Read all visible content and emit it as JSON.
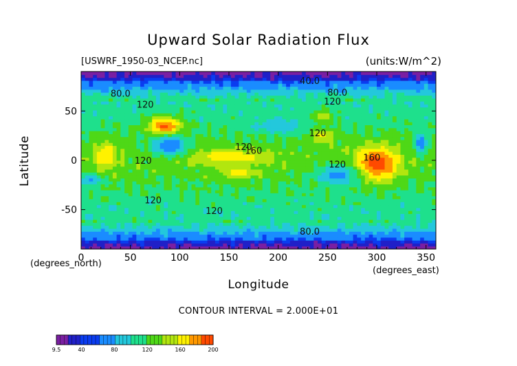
{
  "chart_data": {
    "type": "heatmap",
    "title": "Upward Solar Radiation Flux",
    "subtitle_left": "[USWRF_1950-03_NCEP.nc]",
    "subtitle_right": "(units:W/m^2)",
    "xlabel": "Longitude",
    "ylabel": "Latitude",
    "x_unit_label": "(degrees_east)",
    "y_unit_label": "(degrees_north)",
    "xlim": [
      0,
      360
    ],
    "ylim": [
      -90,
      90
    ],
    "x_ticks": [
      0,
      50,
      100,
      150,
      200,
      250,
      300,
      350
    ],
    "y_ticks": [
      50,
      0,
      -50
    ],
    "contour_interval_text": "CONTOUR INTERVAL = 2.000E+01",
    "contour_labels": [
      {
        "text": "40.0",
        "lon": 232,
        "lat": 81
      },
      {
        "text": "80.0",
        "lon": 40,
        "lat": 68
      },
      {
        "text": "80.0",
        "lon": 260,
        "lat": 69
      },
      {
        "text": "120",
        "lon": 65,
        "lat": 57
      },
      {
        "text": "120",
        "lon": 255,
        "lat": 60
      },
      {
        "text": "120",
        "lon": 240,
        "lat": 28
      },
      {
        "text": "120",
        "lon": 165,
        "lat": 14
      },
      {
        "text": "160",
        "lon": 175,
        "lat": 10
      },
      {
        "text": "120",
        "lon": 63,
        "lat": 0
      },
      {
        "text": "120",
        "lon": 260,
        "lat": -4
      },
      {
        "text": "160",
        "lon": 295,
        "lat": 3
      },
      {
        "text": "120",
        "lon": 73,
        "lat": -40
      },
      {
        "text": "120",
        "lon": 135,
        "lat": -51
      },
      {
        "text": "80.0",
        "lon": 232,
        "lat": -72
      }
    ],
    "field_features": [
      {
        "lon": 85,
        "lat": 35,
        "value": 190,
        "w": 18,
        "h": 10
      },
      {
        "lon": 25,
        "lat": 5,
        "value": 170,
        "w": 12,
        "h": 14
      },
      {
        "lon": 150,
        "lat": 4,
        "value": 165,
        "w": 45,
        "h": 8
      },
      {
        "lon": 160,
        "lat": -12,
        "value": 160,
        "w": 20,
        "h": 7
      },
      {
        "lon": 300,
        "lat": -3,
        "value": 195,
        "w": 22,
        "h": 18
      },
      {
        "lon": 245,
        "lat": 25,
        "value": 160,
        "w": 14,
        "h": 8
      },
      {
        "lon": 245,
        "lat": 45,
        "value": 150,
        "w": 12,
        "h": 7
      },
      {
        "lon": 90,
        "lat": 15,
        "value": 60,
        "w": 18,
        "h": 10
      },
      {
        "lon": 260,
        "lat": -15,
        "value": 70,
        "w": 20,
        "h": 10
      },
      {
        "lon": 345,
        "lat": 18,
        "value": 60,
        "w": 6,
        "h": 10
      },
      {
        "lon": 10,
        "lat": -20,
        "value": 75,
        "w": 10,
        "h": 6
      },
      {
        "lon": 200,
        "lat": 35,
        "value": 90,
        "w": 30,
        "h": 8
      }
    ],
    "colorbar": {
      "tick_labels": [
        "9.5",
        "40",
        "80",
        "120",
        "160",
        "200"
      ],
      "tick_values": [
        9.5,
        40,
        80,
        120,
        160,
        200
      ],
      "range": [
        9.5,
        200
      ],
      "stops": [
        {
          "v": 9.5,
          "c": "#7a1fa2"
        },
        {
          "v": 25,
          "c": "#2020c8"
        },
        {
          "v": 40,
          "c": "#0a3cf0"
        },
        {
          "v": 60,
          "c": "#1a8cff"
        },
        {
          "v": 80,
          "c": "#23c8dc"
        },
        {
          "v": 100,
          "c": "#1ee08c"
        },
        {
          "v": 120,
          "c": "#4ed817"
        },
        {
          "v": 140,
          "c": "#b2e60f"
        },
        {
          "v": 155,
          "c": "#fff200"
        },
        {
          "v": 170,
          "c": "#ff9800"
        },
        {
          "v": 185,
          "c": "#ff4a00"
        },
        {
          "v": 200,
          "c": "#e01010"
        }
      ]
    }
  }
}
